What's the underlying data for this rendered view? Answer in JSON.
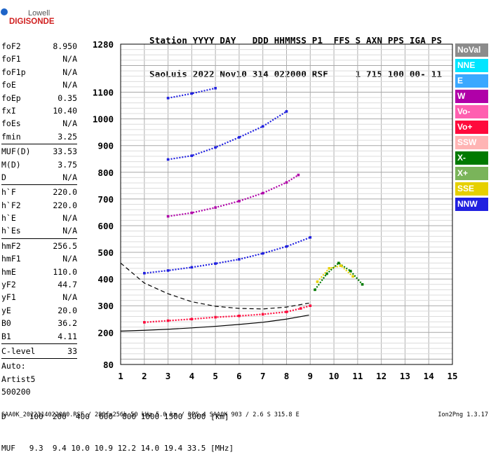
{
  "logo": {
    "line1": "Lowell",
    "line2": "DIGISONDE"
  },
  "header": {
    "row1": "Station YYYY DAY   DDD HHMMSS P1  FFS S AXN PPS IGA PS",
    "row2": "SaoLuis 2022 Nov10 314 022000 RSF     1 715 100 00- 11"
  },
  "params": {
    "group1": [
      {
        "name": "foF2",
        "value": "8.950"
      },
      {
        "name": "foF1",
        "value": "N/A"
      },
      {
        "name": "foF1p",
        "value": "N/A"
      },
      {
        "name": "foE",
        "value": "N/A"
      },
      {
        "name": "foEp",
        "value": "0.35"
      },
      {
        "name": "fxI",
        "value": "10.40"
      },
      {
        "name": "foEs",
        "value": "N/A"
      },
      {
        "name": "fmin",
        "value": "3.25"
      }
    ],
    "group2": [
      {
        "name": "MUF(D)",
        "value": "33.53"
      },
      {
        "name": "M(D)",
        "value": "3.75"
      },
      {
        "name": "D",
        "value": "N/A"
      }
    ],
    "group3": [
      {
        "name": "h`F",
        "value": "220.0"
      },
      {
        "name": "h`F2",
        "value": "220.0"
      },
      {
        "name": "h`E",
        "value": "N/A"
      },
      {
        "name": "h`Es",
        "value": "N/A"
      }
    ],
    "group4": [
      {
        "name": "hmF2",
        "value": "256.5"
      },
      {
        "name": "hmF1",
        "value": "N/A"
      },
      {
        "name": "hmE",
        "value": "110.0"
      },
      {
        "name": "yF2",
        "value": "44.7"
      },
      {
        "name": "yF1",
        "value": "N/A"
      },
      {
        "name": "yE",
        "value": "20.0"
      },
      {
        "name": "B0",
        "value": "36.2"
      },
      {
        "name": "B1",
        "value": "4.11"
      }
    ],
    "group5": [
      {
        "name": "C-level",
        "value": "33"
      }
    ],
    "autoscaling": {
      "line1": "Auto:",
      "line2": "Artist5",
      "line3": "500200"
    }
  },
  "legend": [
    {
      "label": "NoVal",
      "color": "#8c8c8c"
    },
    {
      "label": "NNE",
      "color": "#00e5ff"
    },
    {
      "label": "E",
      "color": "#3aa8ff"
    },
    {
      "label": "W",
      "color": "#b000a8"
    },
    {
      "label": "Vo-",
      "color": "#ff5fb0"
    },
    {
      "label": "Vo+",
      "color": "#ff0a3c"
    },
    {
      "label": "SSW",
      "color": "#ffb4b4"
    },
    {
      "label": "X-",
      "color": "#007a00"
    },
    {
      "label": "X+",
      "color": "#7ab45a"
    },
    {
      "label": "SSE",
      "color": "#e6d000"
    },
    {
      "label": "NNW",
      "color": "#2020e0"
    }
  ],
  "bottom_table": {
    "d_row": "D     100  200  400  600  800 1000 1500 3000 [km]",
    "muf_row": "MUF   9.3  9.4 10.0 10.9 12.2 14.0 19.4 33.5 [MHz]"
  },
  "footer": {
    "left": "SAA0K_2022314022000.RSF / 280fx256h 50 kHz 5.0 km / DPS-4 SAA0K 903 / 2.6 S 315.8 E",
    "right": "Ion2Png 1.3.17"
  },
  "chart_data": {
    "type": "scatter",
    "title": "",
    "xlabel": "",
    "ylabel": "",
    "xlim": [
      1,
      15
    ],
    "ylim": [
      80,
      1280
    ],
    "x_ticks": [
      1,
      2,
      3,
      4,
      5,
      6,
      7,
      8,
      9,
      10,
      11,
      12,
      13,
      14,
      15
    ],
    "y_ticks": [
      80,
      200,
      300,
      400,
      500,
      600,
      700,
      800,
      900,
      1000,
      1100,
      1280
    ],
    "grid": true,
    "series": [
      {
        "name": "",
        "color": "#ff0a3c",
        "x": [
          2.0,
          3.0,
          4.0,
          5.0,
          6.0,
          7.0,
          8.0,
          8.6,
          9.0
        ],
        "y": [
          238,
          244,
          250,
          257,
          262,
          268,
          277,
          290,
          300
        ]
      },
      {
        "name": "",
        "color": "#2020e0",
        "x": [
          2.0,
          3.0,
          4.0,
          5.0,
          6.0,
          7.0,
          8.0,
          9.0
        ],
        "y": [
          422,
          432,
          444,
          458,
          474,
          496,
          522,
          556
        ]
      },
      {
        "name": "",
        "color": "#b000a8",
        "x": [
          3.0,
          4.0,
          5.0,
          6.0,
          7.0,
          8.0,
          8.5
        ],
        "y": [
          635,
          648,
          668,
          692,
          722,
          762,
          790
        ]
      },
      {
        "name": "",
        "color": "#2020e0",
        "x": [
          3.0,
          4.0,
          5.0,
          6.0,
          7.0,
          8.0
        ],
        "y": [
          848,
          862,
          893,
          931,
          972,
          1028
        ]
      },
      {
        "name": "",
        "color": "#2020e0",
        "x": [
          3.0,
          4.0,
          5.0
        ],
        "y": [
          1078,
          1095,
          1115
        ]
      },
      {
        "name": "",
        "color": "#007a00",
        "x": [
          9.2,
          9.7,
          10.2,
          10.7,
          11.2
        ],
        "y": [
          360,
          420,
          460,
          430,
          380
        ]
      },
      {
        "name": "",
        "color": "#e6d000",
        "x": [
          9.3,
          9.8,
          10.3,
          10.8
        ],
        "y": [
          390,
          440,
          450,
          410
        ]
      }
    ],
    "model_curves": [
      {
        "style": "solid",
        "x": [
          1.0,
          2.0,
          3.0,
          4.0,
          5.0,
          6.0,
          7.0,
          8.0,
          8.95
        ],
        "y": [
          205,
          208,
          212,
          217,
          223,
          230,
          238,
          250,
          265
        ]
      },
      {
        "style": "dashed",
        "x": [
          1.0,
          2.0,
          3.0,
          4.0,
          5.0,
          6.0,
          7.0,
          8.0,
          8.95
        ],
        "y": [
          460,
          385,
          345,
          315,
          298,
          290,
          288,
          295,
          310
        ]
      }
    ]
  }
}
